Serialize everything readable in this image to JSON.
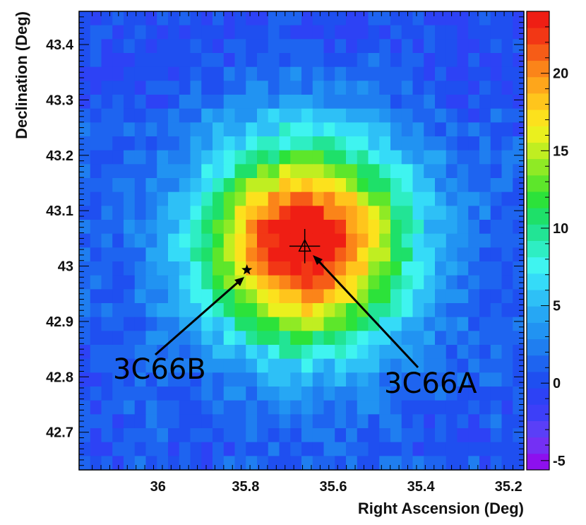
{
  "chart_data": {
    "type": "heatmap",
    "title": "",
    "xlabel": "Right Ascension (Deg)",
    "ylabel": "Declination (Deg)",
    "x_direction": "decreasing to the right",
    "xlim": [
      36.18,
      35.165
    ],
    "ylim": [
      42.632,
      43.46
    ],
    "x_ticks": [
      {
        "value": 36.0,
        "label": "36"
      },
      {
        "value": 35.8,
        "label": "35.8"
      },
      {
        "value": 35.6,
        "label": "35.6"
      },
      {
        "value": 35.4,
        "label": "35.4"
      },
      {
        "value": 35.2,
        "label": "35.2"
      }
    ],
    "y_ticks": [
      {
        "value": 42.7,
        "label": "42.7"
      },
      {
        "value": 42.8,
        "label": "42.8"
      },
      {
        "value": 42.9,
        "label": "42.9"
      },
      {
        "value": 43.0,
        "label": "43"
      },
      {
        "value": 43.1,
        "label": "43.1"
      },
      {
        "value": 43.2,
        "label": "43.2"
      },
      {
        "value": 43.3,
        "label": "43.3"
      },
      {
        "value": 43.4,
        "label": "43.4"
      }
    ],
    "grid": {
      "nx": 40,
      "ny": 33
    },
    "source_model": {
      "center_ra": 35.665,
      "center_dec": 43.04,
      "peak": 24,
      "sigma_ra": 0.16,
      "sigma_dec": 0.125,
      "background": 1.5
    },
    "colorbar": {
      "range": [
        -5.6,
        24
      ],
      "ticks": [
        {
          "value": 20,
          "label": "20"
        },
        {
          "value": 15,
          "label": "15"
        },
        {
          "value": 10,
          "label": "10"
        },
        {
          "value": 5,
          "label": "5"
        },
        {
          "value": 0,
          "label": "0"
        },
        {
          "value": -5,
          "label": "-5"
        }
      ],
      "colors": [
        "#8d10ee",
        "#7430f4",
        "#5a3ff7",
        "#3d3ff8",
        "#2d42f5",
        "#1f4ff0",
        "#1e64f0",
        "#1f7ef0",
        "#2193f2",
        "#26a7f4",
        "#2ec0f6",
        "#35dbf8",
        "#3ff4f0",
        "#2eeec3",
        "#22e495",
        "#1ee069",
        "#2ce23a",
        "#5de62b",
        "#8fea25",
        "#c0ee21",
        "#eaf01e",
        "#fce11d",
        "#ffc51c",
        "#fea61b",
        "#fb8419",
        "#f65c17",
        "#f23715",
        "#ef1e14"
      ]
    },
    "markers": [
      {
        "name": "3C66A",
        "ra": 35.665,
        "dec": 43.036,
        "shape": "open-triangle",
        "error_ra": 0.035,
        "error_dec": 0.031
      },
      {
        "name": "3C66B",
        "ra": 35.797,
        "dec": 42.993,
        "shape": "filled-star"
      }
    ],
    "annotations": [
      {
        "text": "3C66B",
        "target": "3C66B"
      },
      {
        "text": "3C66A",
        "target": "3C66A"
      }
    ]
  }
}
